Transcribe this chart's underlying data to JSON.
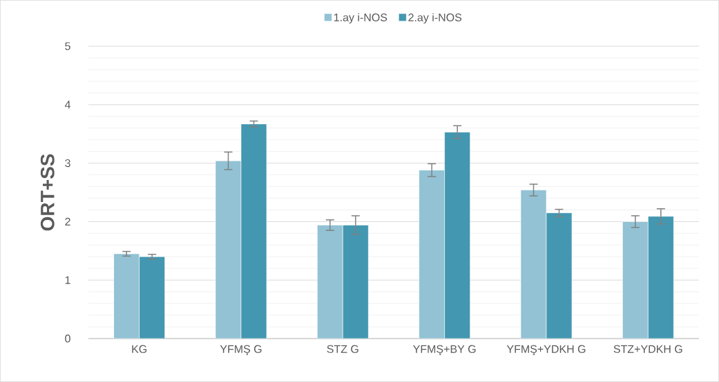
{
  "chart_data": {
    "type": "bar",
    "ylabel": "ORT+SS",
    "categories": [
      "KG",
      "YFMŞ G",
      "STZ G",
      "YFMŞ+BY G",
      "YFMŞ+YDKH G",
      "STZ+YDKH G"
    ],
    "series": [
      {
        "name": "1.ay i-NOS",
        "color": "#92c2d4",
        "values": [
          1.45,
          3.04,
          1.94,
          2.88,
          2.54,
          2.0
        ],
        "errors": [
          0.04,
          0.15,
          0.09,
          0.11,
          0.1,
          0.1
        ]
      },
      {
        "name": "2.ay i-NOS",
        "color": "#4397b0",
        "values": [
          1.4,
          3.67,
          1.94,
          3.53,
          2.15,
          2.09
        ],
        "errors": [
          0.04,
          0.05,
          0.16,
          0.11,
          0.06,
          0.13
        ]
      }
    ],
    "ylim": [
      0,
      5
    ],
    "yticks": [
      0,
      {
        "value": 0.2,
        "label": null
      },
      {
        "value": 0.4,
        "label": null
      },
      {
        "value": 0.6,
        "label": null
      },
      {
        "value": 0.8,
        "label": null
      },
      1,
      {
        "value": 1.2,
        "label": null
      },
      {
        "value": 1.4,
        "label": null
      },
      {
        "value": 1.6,
        "label": null
      },
      {
        "value": 1.8,
        "label": null
      },
      2,
      {
        "value": 2.2,
        "label": null
      },
      {
        "value": 2.4,
        "label": null
      },
      {
        "value": 2.6,
        "label": null
      },
      {
        "value": 2.8,
        "label": null
      },
      3,
      {
        "value": 3.2,
        "label": null
      },
      {
        "value": 3.4,
        "label": null
      },
      {
        "value": 3.6,
        "label": null
      },
      {
        "value": 3.8,
        "label": null
      },
      4,
      {
        "value": 4.2,
        "label": null
      },
      {
        "value": 4.4,
        "label": null
      },
      {
        "value": 4.6,
        "label": null
      },
      {
        "value": 4.8,
        "label": null
      },
      5
    ],
    "grid": true,
    "legend": "top"
  }
}
